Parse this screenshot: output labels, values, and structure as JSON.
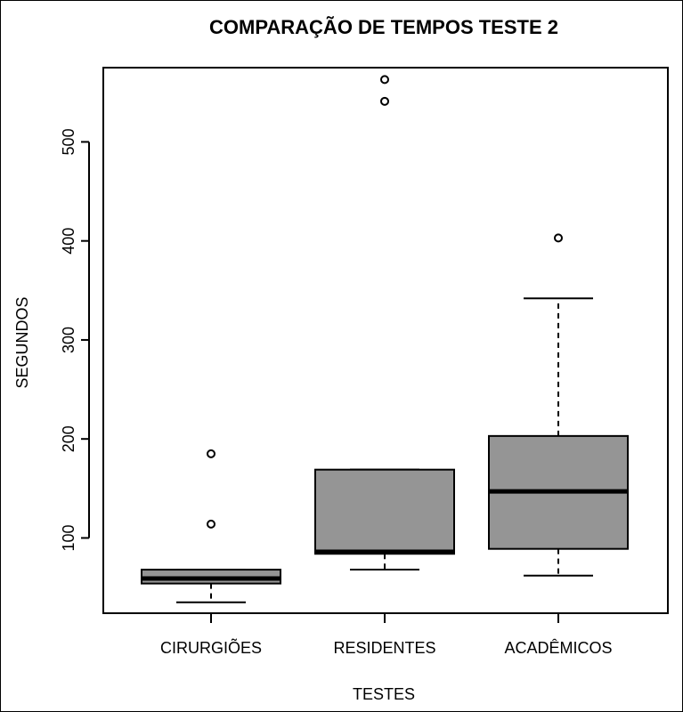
{
  "chart_data": {
    "type": "boxplot",
    "title": "COMPARAÇÃO DE TEMPOS TESTE 2",
    "xlabel": "TESTES",
    "ylabel": "SEGUNDOS",
    "ylim": [
      24,
      575
    ],
    "yticks": [
      100,
      200,
      300,
      400,
      500
    ],
    "box_color": "#959595",
    "categories": [
      "CIRURGIÕES",
      "RESIDENTES",
      "ACADÊMICOS"
    ],
    "boxes": [
      {
        "whisker_low": 35,
        "q1": 54,
        "median": 59,
        "q3": 68,
        "whisker_high": 68,
        "outliers": [
          114,
          185
        ]
      },
      {
        "whisker_low": 68,
        "q1": 84,
        "median": 86,
        "q3": 169,
        "whisker_high": 169,
        "outliers": [
          541,
          563
        ]
      },
      {
        "whisker_low": 62,
        "q1": 89,
        "median": 147,
        "q3": 203,
        "whisker_high": 342,
        "outliers": [
          403
        ]
      }
    ]
  }
}
